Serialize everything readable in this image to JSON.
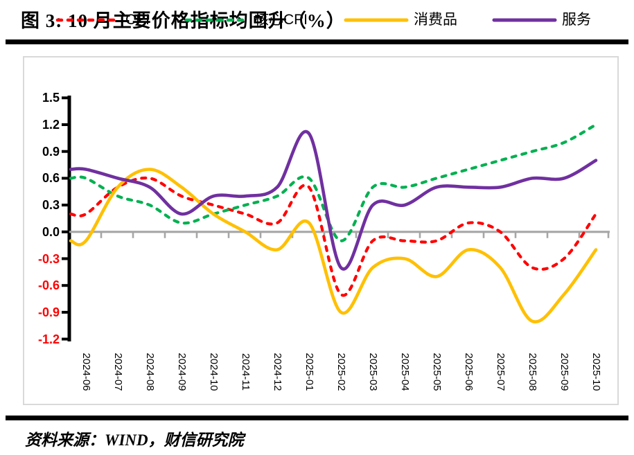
{
  "header": {
    "title": "图 3:  10 月主要价格指标均回升（%）"
  },
  "footer": {
    "source": "资料来源：WIND，财信研究院"
  },
  "chart_data": {
    "type": "line",
    "title": "图 3: 10 月主要价格指标均回升（%）",
    "unit": "%",
    "legend_position": "top",
    "grid": false,
    "smoothed": true,
    "categories": [
      "2024-06",
      "2024-07",
      "2024-08",
      "2024-09",
      "2024-10",
      "2024-11",
      "2024-12",
      "2025-01",
      "2025-02",
      "2025-03",
      "2025-04",
      "2025-05",
      "2025-06",
      "2025-07",
      "2025-08",
      "2025-09",
      "2025-10"
    ],
    "series": [
      {
        "name": "CPI",
        "color": "#FF0000",
        "line_style": "dashed",
        "values": [
          0.2,
          0.5,
          0.6,
          0.4,
          0.3,
          0.2,
          0.1,
          0.5,
          -0.7,
          -0.1,
          -0.1,
          -0.1,
          0.1,
          0.0,
          -0.4,
          -0.3,
          0.2
        ]
      },
      {
        "name": "核心CPI",
        "color": "#00B050",
        "line_style": "dashed",
        "values": [
          0.6,
          0.4,
          0.3,
          0.1,
          0.2,
          0.3,
          0.4,
          0.6,
          -0.1,
          0.5,
          0.5,
          0.6,
          0.7,
          0.8,
          0.9,
          1.0,
          1.2
        ]
      },
      {
        "name": "消费品",
        "color": "#FFC000",
        "line_style": "solid",
        "values": [
          -0.1,
          0.5,
          0.7,
          0.5,
          0.2,
          0.0,
          -0.2,
          0.1,
          -0.9,
          -0.4,
          -0.3,
          -0.5,
          -0.2,
          -0.4,
          -1.0,
          -0.7,
          -0.2
        ]
      },
      {
        "name": "服务",
        "color": "#7030A0",
        "line_style": "solid",
        "values": [
          0.7,
          0.6,
          0.5,
          0.2,
          0.4,
          0.4,
          0.5,
          1.1,
          -0.4,
          0.3,
          0.3,
          0.5,
          0.5,
          0.5,
          0.6,
          0.6,
          0.8
        ]
      }
    ],
    "ylim": [
      -1.2,
      1.5
    ],
    "y_ticks": [
      1.5,
      1.2,
      0.9,
      0.6,
      0.3,
      0.0,
      -0.3,
      -0.6,
      -0.9,
      -1.2
    ],
    "y_tick_labels": [
      "1.5",
      "1.2",
      "0.9",
      "0.6",
      "0.3",
      "0.0",
      "-0.3",
      "-0.6",
      "-0.9",
      "-1.2"
    ],
    "colors": {
      "axis": "#000000",
      "zero_line": "#A6A6A6",
      "positive_tick_label": "#000000",
      "negative_tick_label": "#FF0000",
      "frame_border": "#D9D9D9"
    }
  }
}
